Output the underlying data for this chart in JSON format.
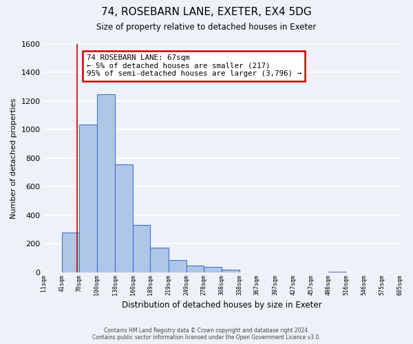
{
  "title": "74, ROSEBARN LANE, EXETER, EX4 5DG",
  "subtitle": "Size of property relative to detached houses in Exeter",
  "xlabel": "Distribution of detached houses by size in Exeter",
  "ylabel": "Number of detached properties",
  "bar_values": [
    0,
    280,
    1035,
    1250,
    755,
    330,
    175,
    85,
    50,
    38,
    20,
    0,
    0,
    0,
    0,
    0,
    5,
    0,
    0,
    0
  ],
  "bin_edges": [
    11,
    41,
    70,
    100,
    130,
    160,
    189,
    219,
    249,
    278,
    308,
    338,
    367,
    397,
    427,
    457,
    486,
    516,
    546,
    575,
    605
  ],
  "tick_labels": [
    "11sqm",
    "41sqm",
    "70sqm",
    "100sqm",
    "130sqm",
    "160sqm",
    "189sqm",
    "219sqm",
    "249sqm",
    "278sqm",
    "308sqm",
    "338sqm",
    "367sqm",
    "397sqm",
    "427sqm",
    "457sqm",
    "486sqm",
    "516sqm",
    "546sqm",
    "575sqm",
    "605sqm"
  ],
  "bar_color": "#aec6e8",
  "bar_edge_color": "#4472c4",
  "ylim": [
    0,
    1600
  ],
  "yticks": [
    0,
    200,
    400,
    600,
    800,
    1000,
    1200,
    1400,
    1600
  ],
  "property_line_x": 67,
  "property_line_color": "#cc0000",
  "annotation_title": "74 ROSEBARN LANE: 67sqm",
  "annotation_line1": "← 5% of detached houses are smaller (217)",
  "annotation_line2": "95% of semi-detached houses are larger (3,796) →",
  "annotation_box_color": "#cc0000",
  "footer_line1": "Contains HM Land Registry data © Crown copyright and database right 2024.",
  "footer_line2": "Contains public sector information licensed under the Open Government Licence v3.0.",
  "bg_color": "#eef2f8",
  "plot_bg_color": "#eef2f8",
  "grid_color": "#ffffff"
}
